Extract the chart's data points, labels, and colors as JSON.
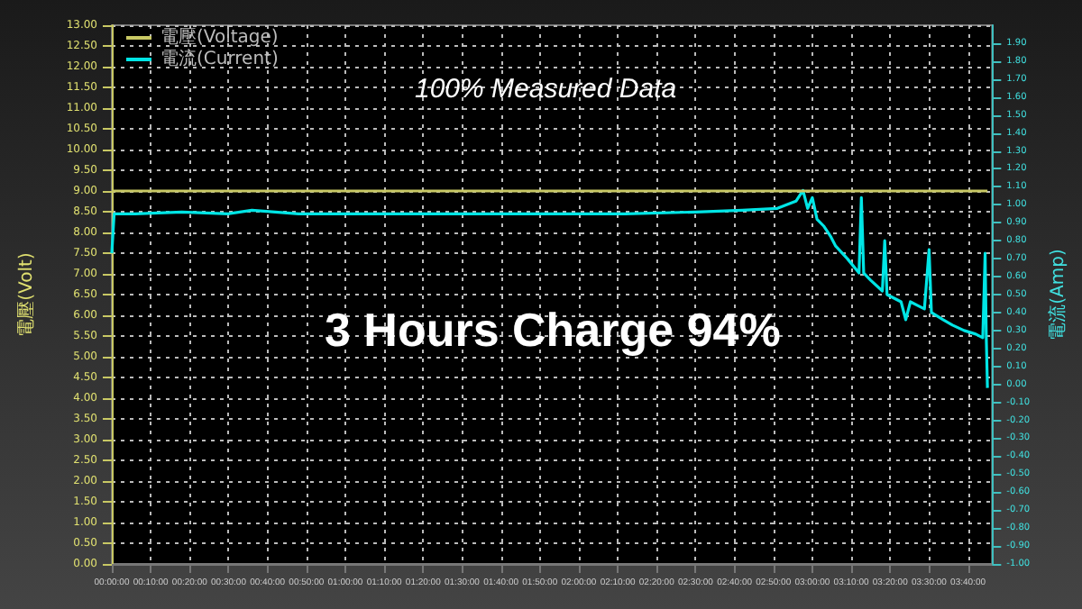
{
  "chart_data": {
    "type": "line",
    "ylabel": "電壓(Volt)",
    "y2label": "電流(Amp)",
    "annotations": [
      "100% Measured Data",
      "3 Hours Charge 94%"
    ],
    "xlim": [
      0,
      3.77
    ],
    "xticks": [
      {
        "value": 0,
        "label": "00:00:00"
      },
      {
        "value": 0.1667,
        "label": "00:10:00"
      },
      {
        "value": 0.3333,
        "label": "00:20:00"
      },
      {
        "value": 0.5,
        "label": "00:30:00"
      },
      {
        "value": 0.6667,
        "label": "00:40:00"
      },
      {
        "value": 0.8333,
        "label": "00:50:00"
      },
      {
        "value": 1,
        "label": "01:00:00"
      },
      {
        "value": 1.1667,
        "label": "01:10:00"
      },
      {
        "value": 1.3333,
        "label": "01:20:00"
      },
      {
        "value": 1.5,
        "label": "01:30:00"
      },
      {
        "value": 1.6667,
        "label": "01:40:00"
      },
      {
        "value": 1.8333,
        "label": "01:50:00"
      },
      {
        "value": 2,
        "label": "02:00:00"
      },
      {
        "value": 2.1667,
        "label": "02:10:00"
      },
      {
        "value": 2.3333,
        "label": "02:20:00"
      },
      {
        "value": 2.5,
        "label": "02:30:00"
      },
      {
        "value": 2.6667,
        "label": "02:40:00"
      },
      {
        "value": 2.8333,
        "label": "02:50:00"
      },
      {
        "value": 3,
        "label": "03:00:00"
      },
      {
        "value": 3.1667,
        "label": "03:10:00"
      },
      {
        "value": 3.3333,
        "label": "03:20:00"
      },
      {
        "value": 3.5,
        "label": "03:30:00"
      },
      {
        "value": 3.6667,
        "label": "03:40:00"
      }
    ],
    "ylim": [
      0,
      13
    ],
    "yticks": [
      {
        "value": 0,
        "label": "0.00"
      },
      {
        "value": 0.5,
        "label": "0.50"
      },
      {
        "value": 1,
        "label": "1.00"
      },
      {
        "value": 1.5,
        "label": "1.50"
      },
      {
        "value": 2,
        "label": "2.00"
      },
      {
        "value": 2.5,
        "label": "2.50"
      },
      {
        "value": 3,
        "label": "3.00"
      },
      {
        "value": 3.5,
        "label": "3.50"
      },
      {
        "value": 4,
        "label": "4.00"
      },
      {
        "value": 4.5,
        "label": "4.50"
      },
      {
        "value": 5,
        "label": "5.00"
      },
      {
        "value": 5.5,
        "label": "5.50"
      },
      {
        "value": 6,
        "label": "6.00"
      },
      {
        "value": 6.5,
        "label": "6.50"
      },
      {
        "value": 7,
        "label": "7.00"
      },
      {
        "value": 7.5,
        "label": "7.50"
      },
      {
        "value": 8,
        "label": "8.00"
      },
      {
        "value": 8.5,
        "label": "8.50"
      },
      {
        "value": 9,
        "label": "9.00"
      },
      {
        "value": 9.5,
        "label": "9.50"
      },
      {
        "value": 10,
        "label": "10.00"
      },
      {
        "value": 10.5,
        "label": "10.50"
      },
      {
        "value": 11,
        "label": "11.00"
      },
      {
        "value": 11.5,
        "label": "11.50"
      },
      {
        "value": 12,
        "label": "12.00"
      },
      {
        "value": 12.5,
        "label": "12.50"
      },
      {
        "value": 13,
        "label": "13.00"
      }
    ],
    "y2lim": [
      -1,
      2
    ],
    "y2ticks": [
      {
        "value": -1,
        "label": "-1.00"
      },
      {
        "value": -0.9,
        "label": "-0.90"
      },
      {
        "value": -0.8,
        "label": "-0.80"
      },
      {
        "value": -0.7,
        "label": "-0.70"
      },
      {
        "value": -0.6,
        "label": "-0.60"
      },
      {
        "value": -0.5,
        "label": "-0.50"
      },
      {
        "value": -0.4,
        "label": "-0.40"
      },
      {
        "value": -0.3,
        "label": "-0.30"
      },
      {
        "value": -0.2,
        "label": "-0.20"
      },
      {
        "value": -0.1,
        "label": "-0.10"
      },
      {
        "value": 0,
        "label": "0.00"
      },
      {
        "value": 0.1,
        "label": "0.10"
      },
      {
        "value": 0.2,
        "label": "0.20"
      },
      {
        "value": 0.3,
        "label": "0.30"
      },
      {
        "value": 0.4,
        "label": "0.40"
      },
      {
        "value": 0.5,
        "label": "0.50"
      },
      {
        "value": 0.6,
        "label": "0.60"
      },
      {
        "value": 0.7,
        "label": "0.70"
      },
      {
        "value": 0.8,
        "label": "0.80"
      },
      {
        "value": 0.9,
        "label": "0.90"
      },
      {
        "value": 1,
        "label": "1.00"
      },
      {
        "value": 1.1,
        "label": "1.10"
      },
      {
        "value": 1.2,
        "label": "1.20"
      },
      {
        "value": 1.3,
        "label": "1.30"
      },
      {
        "value": 1.4,
        "label": "1.40"
      },
      {
        "value": 1.5,
        "label": "1.50"
      },
      {
        "value": 1.6,
        "label": "1.60"
      },
      {
        "value": 1.7,
        "label": "1.70"
      },
      {
        "value": 1.8,
        "label": "1.80"
      },
      {
        "value": 1.9,
        "label": "1.90"
      }
    ],
    "grid": true,
    "legend": "top left",
    "series": [
      {
        "name": "電壓(Voltage)",
        "color": "#c8c864",
        "x": [
          0,
          0.5,
          1,
          1.5,
          2,
          2.5,
          3,
          3.5,
          3.75
        ],
        "values": [
          9.0,
          9.0,
          9.0,
          9.0,
          9.0,
          9.0,
          9.0,
          9.0,
          9.0
        ]
      },
      {
        "name": "電流(Current)",
        "color": "#00e5e5",
        "axis": "y2",
        "x": [
          0,
          0.01,
          0.1,
          0.3,
          0.5,
          0.6,
          0.8,
          1,
          1.2,
          1.5,
          1.8,
          2,
          2.2,
          2.5,
          2.7,
          2.85,
          2.93,
          2.96,
          2.98,
          3,
          3.02,
          3.05,
          3.08,
          3.1,
          3.15,
          3.2,
          3.21,
          3.22,
          3.25,
          3.3,
          3.31,
          3.32,
          3.38,
          3.4,
          3.42,
          3.48,
          3.5,
          3.51,
          3.56,
          3.6,
          3.65,
          3.7,
          3.73,
          3.74,
          3.745,
          3.75
        ],
        "values": [
          0.73,
          0.95,
          0.95,
          0.96,
          0.95,
          0.97,
          0.95,
          0.95,
          0.95,
          0.95,
          0.95,
          0.95,
          0.95,
          0.96,
          0.97,
          0.98,
          1.02,
          1.08,
          0.98,
          1.04,
          0.92,
          0.88,
          0.82,
          0.77,
          0.7,
          0.62,
          1.04,
          0.62,
          0.58,
          0.52,
          0.8,
          0.5,
          0.46,
          0.36,
          0.46,
          0.42,
          0.75,
          0.4,
          0.36,
          0.33,
          0.3,
          0.28,
          0.26,
          0.73,
          0.26,
          -0.02
        ]
      }
    ]
  }
}
